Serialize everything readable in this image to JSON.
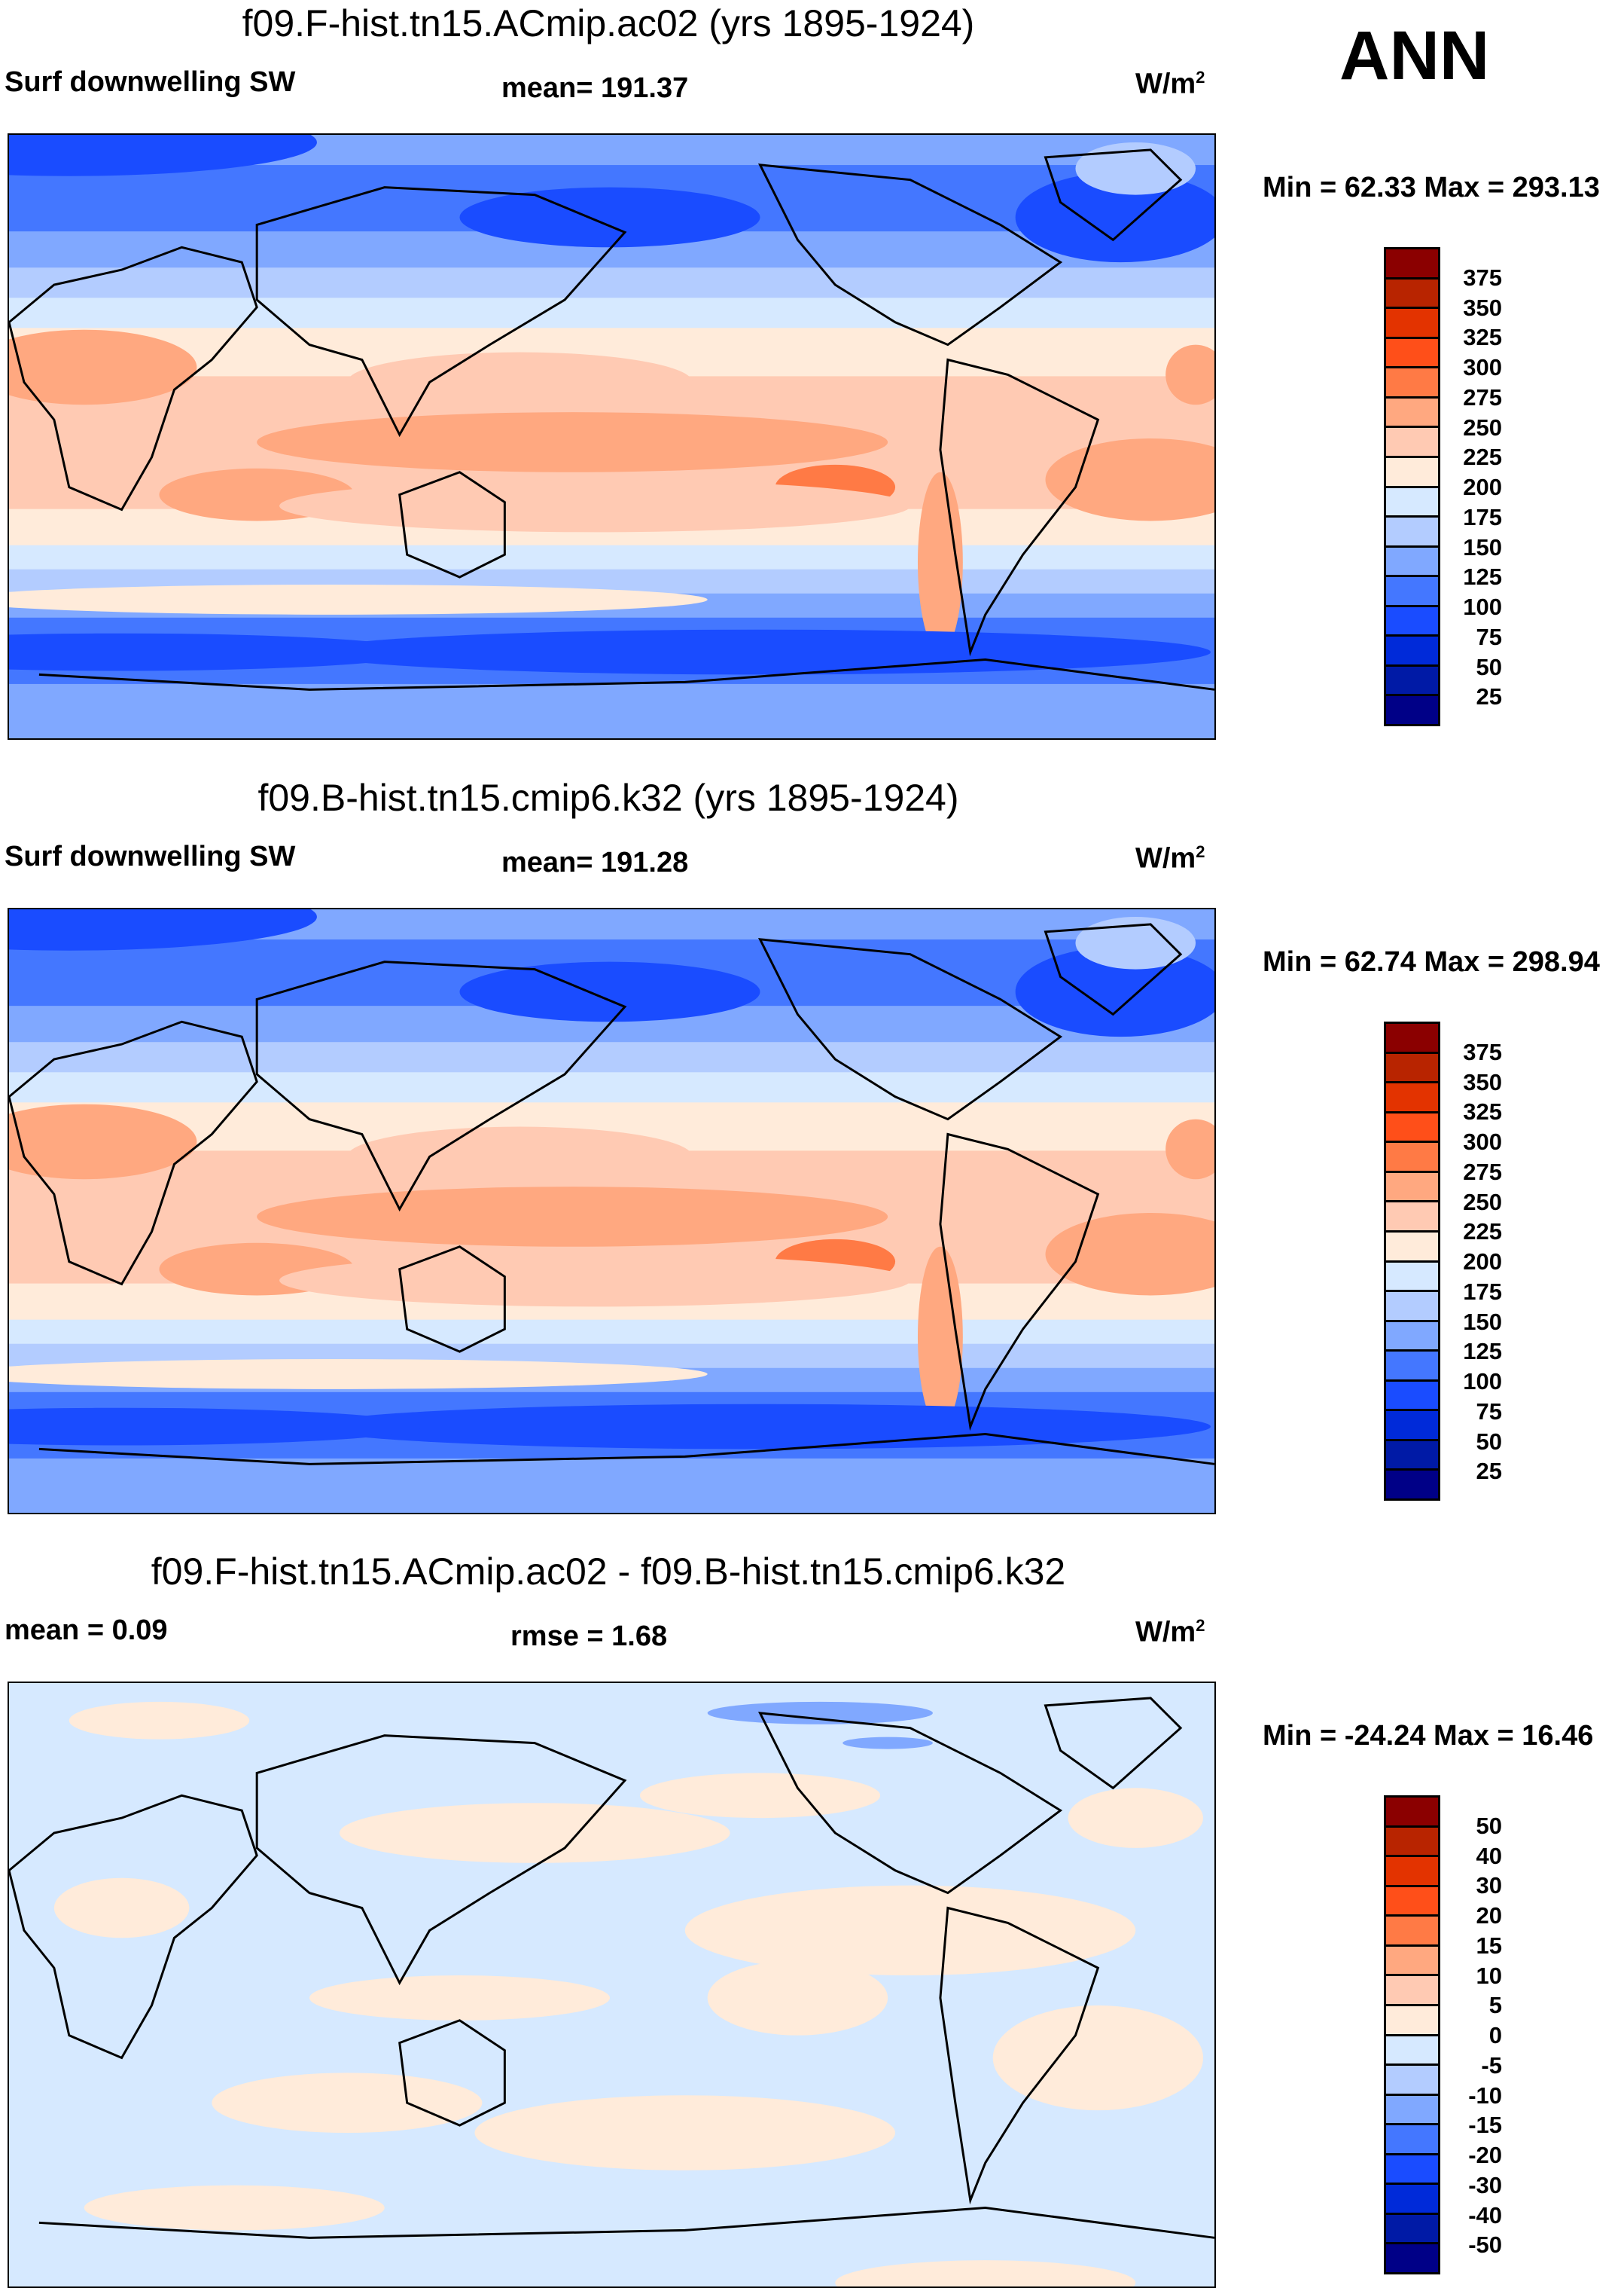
{
  "season": "ANN",
  "chart_data": [
    {
      "type": "heatmap",
      "title": "f09.F-hist.tn15.ACmip.ac02 (yrs 1895-1924)",
      "variable": "Surf downwelling SW",
      "stat_left": "mean= 191.37",
      "units": "W/m",
      "units_sup": "2",
      "minmax": "Min =  62.33 Max = 293.13",
      "levels": [
        "375",
        "350",
        "325",
        "300",
        "275",
        "250",
        "225",
        "200",
        "175",
        "150",
        "125",
        "100",
        "75",
        "50",
        "25"
      ],
      "kind": "abs"
    },
    {
      "type": "heatmap",
      "title": "f09.B-hist.tn15.cmip6.k32 (yrs 1895-1924)",
      "variable": "Surf downwelling SW",
      "stat_left": "mean= 191.28",
      "units": "W/m",
      "units_sup": "2",
      "minmax": "Min =  62.74 Max = 298.94",
      "levels": [
        "375",
        "350",
        "325",
        "300",
        "275",
        "250",
        "225",
        "200",
        "175",
        "150",
        "125",
        "100",
        "75",
        "50",
        "25"
      ],
      "kind": "abs"
    },
    {
      "type": "heatmap",
      "title": "f09.F-hist.tn15.ACmip.ac02 - f09.B-hist.tn15.cmip6.k32",
      "variable": "mean =   0.09",
      "stat_left": "rmse =   1.68",
      "units": "W/m",
      "units_sup": "2",
      "minmax": "Min = -24.24 Max =  16.46",
      "levels": [
        "50",
        "40",
        "30",
        "20",
        "15",
        "10",
        "5",
        "0",
        "-5",
        "-10",
        "-15",
        "-20",
        "-30",
        "-40",
        "-50"
      ],
      "kind": "diff"
    }
  ],
  "colormap": [
    "#8b0000",
    "#b82400",
    "#e33300",
    "#ff4f19",
    "#ff7a45",
    "#ffa880",
    "#ffcab3",
    "#ffebda",
    "#d6e9ff",
    "#b3ccff",
    "#80a8ff",
    "#4477ff",
    "#1a4cff",
    "#002ad9",
    "#001aa6",
    "#000087"
  ]
}
